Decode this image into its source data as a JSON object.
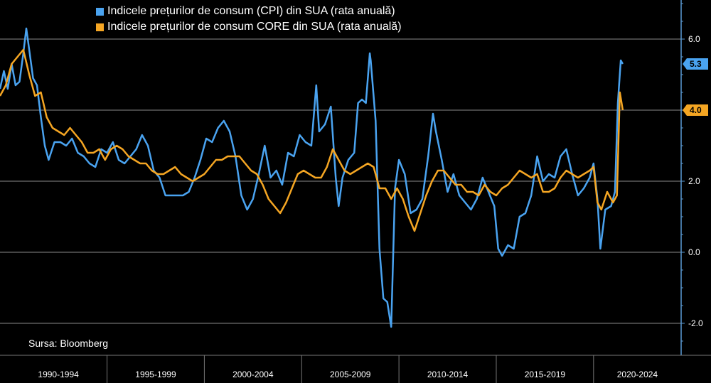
{
  "colors": {
    "background": "#000000",
    "cpi": "#4aa3f0",
    "core": "#f5a623",
    "grid": "#8a8a8a",
    "axis": "#5b9bd5"
  },
  "legend": [
    {
      "label": "Indicele prețurilor de consum (CPI) din SUA (rata anuală)",
      "color": "#4aa3f0"
    },
    {
      "label": "Indicele prețurilor de consum CORE din SUA (rata anuală)",
      "color": "#f5a623"
    }
  ],
  "source": "Sursa: Bloomberg",
  "chart_data": {
    "type": "line",
    "title": "",
    "xlabel": "",
    "ylabel": "",
    "xlim": [
      1989.5,
      2024.5
    ],
    "ylim": [
      -2.9,
      7.1
    ],
    "grid": true,
    "legend_position": "top-left",
    "y_ticks": [
      {
        "value": 6.0,
        "label": "6.0"
      },
      {
        "value": 4.0,
        "label": "4.0"
      },
      {
        "value": 2.0,
        "label": "2.0"
      },
      {
        "value": 0.0,
        "label": "0.0"
      },
      {
        "value": -2.0,
        "label": "-2.0"
      }
    ],
    "x_groups": [
      {
        "label": "1990-1994",
        "from": 1990,
        "to": 1995
      },
      {
        "label": "1995-1999",
        "from": 1995,
        "to": 2000
      },
      {
        "label": "2000-2004",
        "from": 2000,
        "to": 2005
      },
      {
        "label": "2005-2009",
        "from": 2005,
        "to": 2010
      },
      {
        "label": "2010-2014",
        "from": 2010,
        "to": 2015
      },
      {
        "label": "2015-2019",
        "from": 2015,
        "to": 2020
      },
      {
        "label": "2020-2024",
        "from": 2020,
        "to": 2025
      }
    ],
    "last_value_labels": [
      {
        "series": 0,
        "value": 5.3,
        "label": "5.3"
      },
      {
        "series": 1,
        "value": 4.0,
        "label": "4.0"
      }
    ],
    "series": [
      {
        "name": "Indicele prețurilor de consum (CPI) din SUA (rata anuală)",
        "color": "#4aa3f0",
        "x": [
          1989.5,
          1989.7,
          1989.9,
          1990.1,
          1990.3,
          1990.5,
          1990.7,
          1990.85,
          1991.0,
          1991.2,
          1991.4,
          1991.6,
          1991.8,
          1992.0,
          1992.3,
          1992.6,
          1992.9,
          1993.2,
          1993.5,
          1993.8,
          1994.1,
          1994.4,
          1994.7,
          1995.0,
          1995.3,
          1995.6,
          1995.9,
          1996.2,
          1996.5,
          1996.8,
          1997.1,
          1997.4,
          1997.7,
          1998.0,
          1998.3,
          1998.6,
          1998.9,
          1999.2,
          1999.5,
          1999.8,
          2000.1,
          2000.4,
          2000.7,
          2001.0,
          2001.3,
          2001.6,
          2001.9,
          2002.2,
          2002.5,
          2002.8,
          2003.1,
          2003.4,
          2003.7,
          2004.0,
          2004.3,
          2004.6,
          2004.9,
          2005.2,
          2005.5,
          2005.75,
          2005.9,
          2006.2,
          2006.5,
          2006.75,
          2006.9,
          2007.1,
          2007.4,
          2007.7,
          2007.9,
          2008.1,
          2008.3,
          2008.5,
          2008.55,
          2008.8,
          2009.0,
          2009.2,
          2009.4,
          2009.6,
          2009.8,
          2010.0,
          2010.3,
          2010.6,
          2010.9,
          2011.2,
          2011.5,
          2011.75,
          2011.9,
          2012.2,
          2012.5,
          2012.8,
          2013.1,
          2013.4,
          2013.7,
          2014.0,
          2014.3,
          2014.6,
          2014.9,
          2015.1,
          2015.3,
          2015.6,
          2015.9,
          2016.2,
          2016.5,
          2016.8,
          2017.1,
          2017.4,
          2017.7,
          2018.0,
          2018.3,
          2018.6,
          2018.9,
          2019.2,
          2019.5,
          2019.8,
          2020.0,
          2020.2,
          2020.35,
          2020.6,
          2020.9,
          2021.1,
          2021.25,
          2021.4,
          2021.5
        ],
        "values": [
          4.6,
          5.1,
          4.6,
          5.3,
          4.7,
          4.8,
          5.6,
          6.3,
          5.7,
          4.9,
          4.7,
          3.8,
          3.0,
          2.6,
          3.1,
          3.1,
          3.0,
          3.2,
          2.8,
          2.7,
          2.5,
          2.4,
          2.9,
          2.8,
          3.1,
          2.6,
          2.5,
          2.7,
          2.9,
          3.3,
          3.0,
          2.3,
          2.1,
          1.6,
          1.6,
          1.6,
          1.6,
          1.7,
          2.1,
          2.6,
          3.2,
          3.1,
          3.5,
          3.7,
          3.4,
          2.7,
          1.6,
          1.2,
          1.5,
          2.2,
          3.0,
          2.1,
          2.3,
          1.9,
          2.8,
          2.7,
          3.3,
          3.1,
          3.0,
          4.7,
          3.4,
          3.6,
          4.1,
          2.1,
          1.3,
          2.1,
          2.6,
          2.8,
          4.2,
          4.3,
          4.2,
          5.6,
          5.4,
          3.7,
          0.1,
          -1.3,
          -1.4,
          -2.1,
          1.8,
          2.6,
          2.2,
          1.1,
          1.2,
          1.5,
          2.7,
          3.9,
          3.4,
          2.6,
          1.7,
          2.2,
          1.6,
          1.4,
          1.2,
          1.5,
          2.1,
          1.7,
          1.3,
          0.1,
          -0.1,
          0.2,
          0.1,
          1.0,
          1.1,
          1.6,
          2.7,
          2.0,
          2.2,
          2.1,
          2.7,
          2.9,
          2.2,
          1.6,
          1.8,
          2.1,
          2.5,
          1.5,
          0.1,
          1.2,
          1.3,
          1.7,
          4.2,
          5.4,
          5.3
        ]
      },
      {
        "name": "Indicele prețurilor de consum CORE din SUA (rata anuală)",
        "color": "#f5a623",
        "x": [
          1989.5,
          1989.8,
          1990.1,
          1990.4,
          1990.7,
          1991.0,
          1991.3,
          1991.6,
          1991.9,
          1992.2,
          1992.5,
          1992.8,
          1993.1,
          1993.4,
          1993.7,
          1994.0,
          1994.3,
          1994.6,
          1994.9,
          1995.2,
          1995.5,
          1995.8,
          1996.1,
          1996.4,
          1996.7,
          1997.0,
          1997.3,
          1997.6,
          1997.9,
          1998.2,
          1998.5,
          1998.8,
          1999.1,
          1999.4,
          1999.7,
          2000.0,
          2000.3,
          2000.6,
          2000.9,
          2001.2,
          2001.5,
          2001.8,
          2002.1,
          2002.4,
          2002.7,
          2003.0,
          2003.3,
          2003.6,
          2003.9,
          2004.2,
          2004.5,
          2004.8,
          2005.1,
          2005.4,
          2005.7,
          2006.0,
          2006.3,
          2006.6,
          2006.9,
          2007.2,
          2007.5,
          2007.8,
          2008.1,
          2008.4,
          2008.7,
          2009.0,
          2009.3,
          2009.6,
          2009.9,
          2010.2,
          2010.5,
          2010.8,
          2011.1,
          2011.4,
          2011.7,
          2012.0,
          2012.3,
          2012.6,
          2012.9,
          2013.2,
          2013.5,
          2013.8,
          2014.1,
          2014.4,
          2014.7,
          2015.0,
          2015.3,
          2015.6,
          2015.9,
          2016.2,
          2016.5,
          2016.8,
          2017.1,
          2017.4,
          2017.7,
          2018.0,
          2018.3,
          2018.6,
          2018.9,
          2019.2,
          2019.5,
          2019.8,
          2020.0,
          2020.2,
          2020.4,
          2020.7,
          2021.0,
          2021.2,
          2021.35,
          2021.5
        ],
        "values": [
          4.4,
          4.7,
          5.3,
          5.5,
          5.7,
          5.0,
          4.4,
          4.5,
          3.8,
          3.5,
          3.4,
          3.3,
          3.5,
          3.3,
          3.1,
          2.8,
          2.8,
          2.9,
          2.6,
          2.9,
          3.0,
          2.9,
          2.7,
          2.6,
          2.5,
          2.5,
          2.3,
          2.2,
          2.2,
          2.3,
          2.4,
          2.2,
          2.1,
          2.0,
          2.1,
          2.2,
          2.4,
          2.6,
          2.6,
          2.7,
          2.7,
          2.7,
          2.5,
          2.3,
          2.2,
          1.9,
          1.5,
          1.3,
          1.1,
          1.4,
          1.8,
          2.2,
          2.3,
          2.2,
          2.1,
          2.1,
          2.4,
          2.9,
          2.6,
          2.3,
          2.2,
          2.3,
          2.4,
          2.5,
          2.4,
          1.8,
          1.8,
          1.5,
          1.8,
          1.5,
          1.0,
          0.6,
          1.1,
          1.6,
          2.0,
          2.3,
          2.3,
          2.1,
          1.9,
          1.9,
          1.7,
          1.7,
          1.6,
          1.9,
          1.7,
          1.6,
          1.8,
          1.9,
          2.1,
          2.3,
          2.2,
          2.1,
          2.2,
          1.7,
          1.7,
          1.8,
          2.1,
          2.3,
          2.2,
          2.1,
          2.2,
          2.3,
          2.4,
          1.4,
          1.2,
          1.7,
          1.4,
          1.6,
          4.5,
          4.0
        ]
      }
    ]
  }
}
